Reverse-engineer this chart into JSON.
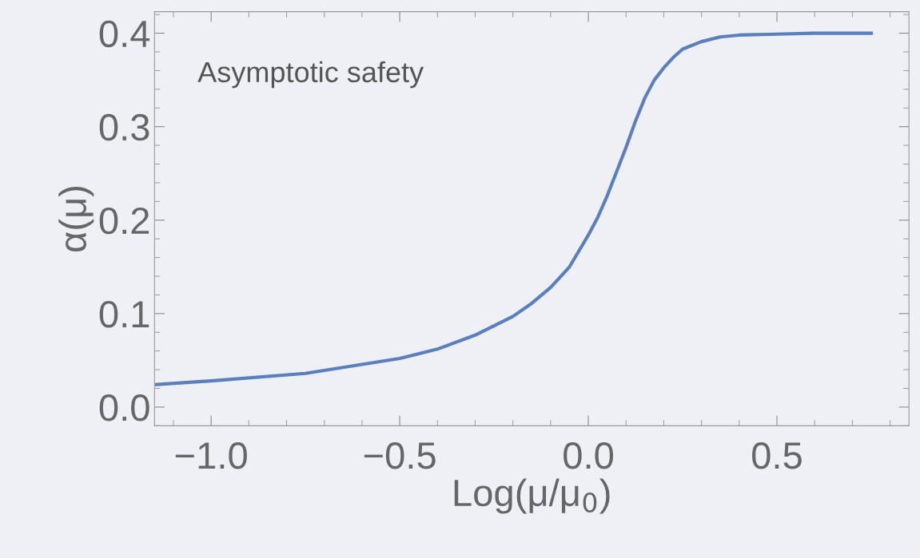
{
  "chart_data": {
    "type": "line",
    "xlabel": "Log(μ/μ$_{0}$)",
    "ylabel": "α(μ)",
    "annotations": [
      "Asymptotic safety"
    ],
    "x": [
      -1.15,
      -1.0,
      -0.75,
      -0.5,
      -0.4,
      -0.3,
      -0.2,
      -0.15,
      -0.1,
      -0.05,
      0.0,
      0.025,
      0.05,
      0.075,
      0.1,
      0.125,
      0.15,
      0.175,
      0.2,
      0.225,
      0.25,
      0.3,
      0.35,
      0.4,
      0.5,
      0.6,
      0.75
    ],
    "series": [
      {
        "color": "#5b7fbd",
        "values": [
          0.024,
          0.028,
          0.036,
          0.052,
          0.062,
          0.077,
          0.097,
          0.111,
          0.128,
          0.15,
          0.184,
          0.203,
          0.226,
          0.252,
          0.278,
          0.306,
          0.331,
          0.35,
          0.363,
          0.374,
          0.383,
          0.391,
          0.396,
          0.398,
          0.399,
          0.4,
          0.4
        ]
      }
    ],
    "xlim": [
      -1.15,
      0.85
    ],
    "ylim": [
      -0.02,
      0.423
    ],
    "xticks": [
      {
        "value": -1.0,
        "label": "−1.0"
      },
      {
        "value": -0.5,
        "label": "−0.5"
      },
      {
        "value": 0.0,
        "label": "0.0"
      },
      0.5
    ],
    "yticks": [
      {
        "value": 0.0,
        "label": "0.0"
      },
      0.1,
      0.2,
      0.3,
      0.4
    ],
    "grid": false,
    "marker": "none",
    "line_style": "solid"
  }
}
